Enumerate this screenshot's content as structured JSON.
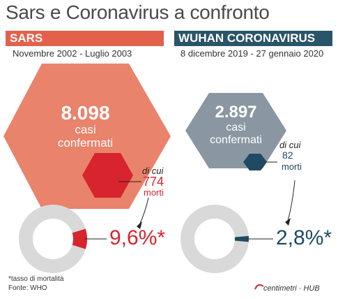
{
  "title": "Sars e Coronavirus a confronto",
  "colors": {
    "sars_banner": "#e3614a",
    "sars_hex": "#e9836c",
    "sars_deaths": "#d8242e",
    "wuhan_banner": "#2a5468",
    "wuhan_hex": "#8a97a3",
    "wuhan_deaths": "#1f4a61",
    "donut_bg": "#d9d9d9"
  },
  "sars": {
    "label": "SARS",
    "period": "Novembre 2002 - Luglio 2003",
    "cases": "8.098",
    "cases_line1": "casi",
    "cases_line2": "confermati",
    "of_which": "di cui",
    "deaths": "774",
    "deaths_label": "morti",
    "mortality": "9,6%*",
    "mortality_rate": 0.096
  },
  "wuhan": {
    "label": "WUHAN CORONAVIRUS",
    "period": "8 dicembre 2019 - 27 gennaio 2020",
    "cases": "2.897",
    "cases_line1": "casi",
    "cases_line2": "confermati",
    "of_which": "di cui",
    "deaths": "82",
    "deaths_label": "morti",
    "mortality": "2,8%*",
    "mortality_rate": 0.028
  },
  "footnote": "*tasso di mortalità",
  "source": "Fonte: WHO",
  "brand": "centimetri · HUB",
  "brand_logo": "centimetri-logo"
}
